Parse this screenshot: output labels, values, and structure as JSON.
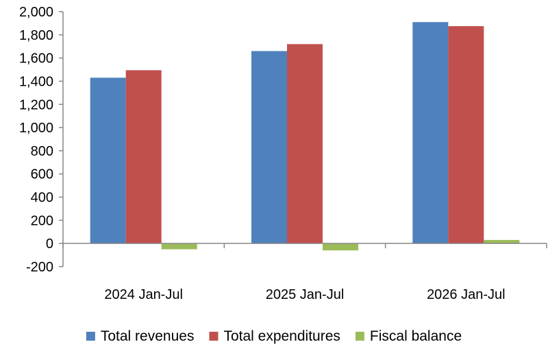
{
  "chart_data": {
    "type": "bar",
    "categories": [
      "2024 Jan-Jul",
      "2025 Jan-Jul",
      "2026 Jan-Jul"
    ],
    "series": [
      {
        "name": "Total revenues",
        "values": [
          1430,
          1660,
          1910
        ],
        "color": "#4F81BD"
      },
      {
        "name": "Total expenditures",
        "values": [
          1495,
          1720,
          1875
        ],
        "color": "#C0504D"
      },
      {
        "name": "Fiscal balance",
        "values": [
          -50,
          -60,
          30
        ],
        "color": "#9BBB59"
      }
    ],
    "ylim": [
      -200,
      2000
    ],
    "yticks": [
      "-200",
      "0",
      "200",
      "400",
      "600",
      "800",
      "1,000",
      "1,200",
      "1,400",
      "1,600",
      "1,800",
      "2,000"
    ],
    "ytick_values": [
      -200,
      0,
      200,
      400,
      600,
      800,
      1000,
      1200,
      1400,
      1600,
      1800,
      2000
    ],
    "grid": false,
    "legend_position": "bottom",
    "title": "",
    "xlabel": "",
    "ylabel": ""
  }
}
